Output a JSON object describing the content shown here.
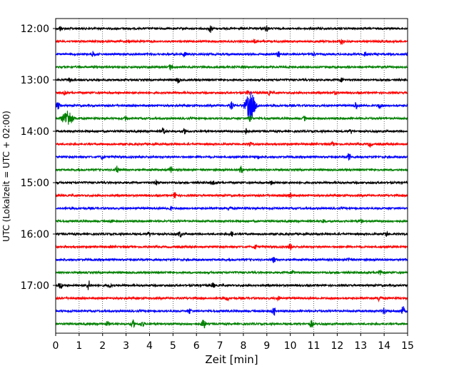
{
  "chart_data": {
    "type": "line",
    "title": "",
    "xlabel": "Zeit  [min]",
    "ylabel": "UTC (Lokalzeit = UTC + 02:00)",
    "xlim": [
      0,
      15
    ],
    "x_ticks": [
      "0",
      "1",
      "2",
      "3",
      "4",
      "5",
      "6",
      "7",
      "8",
      "9",
      "10",
      "11",
      "12",
      "13",
      "14",
      "15"
    ],
    "y_ticks": [
      "12:00",
      "13:00",
      "14:00",
      "15:00",
      "16:00",
      "17:00"
    ],
    "grid": "vertical-dotted",
    "colors": [
      "#000000",
      "#ff0000",
      "#0000ff",
      "#008000"
    ],
    "traces": [
      {
        "start": "12:00",
        "color": "#000000",
        "events": [
          [
            6.6,
            5
          ],
          [
            9.0,
            3.5
          ],
          [
            0.2,
            3
          ]
        ]
      },
      {
        "start": "12:15",
        "color": "#ff0000",
        "events": [
          [
            12.2,
            3.5
          ],
          [
            3.1,
            2
          ],
          [
            8.5,
            2
          ]
        ]
      },
      {
        "start": "12:30",
        "color": "#0000ff",
        "events": [
          [
            1.6,
            3.5
          ],
          [
            5.5,
            3
          ],
          [
            9.5,
            4
          ],
          [
            11.0,
            2.5
          ],
          [
            13.2,
            2.5
          ]
        ]
      },
      {
        "start": "12:45",
        "color": "#008000",
        "events": [
          [
            4.9,
            4
          ],
          [
            8.0,
            2.5
          ]
        ]
      },
      {
        "start": "13:00",
        "color": "#000000",
        "events": [
          [
            0.6,
            3
          ],
          [
            5.2,
            4.5
          ],
          [
            12.2,
            2.5
          ]
        ]
      },
      {
        "start": "13:15",
        "color": "#ff0000",
        "events": [
          [
            0.4,
            3
          ],
          [
            8.2,
            3
          ],
          [
            9.1,
            2
          ],
          [
            11.9,
            2
          ]
        ]
      },
      {
        "start": "13:30",
        "color": "#0000ff",
        "events": [
          [
            0.1,
            5
          ],
          [
            7.5,
            5
          ],
          [
            8.3,
            19
          ],
          [
            12.8,
            5
          ],
          [
            13.8,
            3.5
          ]
        ]
      },
      {
        "start": "13:45",
        "color": "#008000",
        "events": [
          [
            0.5,
            12
          ],
          [
            3.0,
            3
          ],
          [
            8.3,
            6
          ],
          [
            10.6,
            3
          ]
        ]
      },
      {
        "start": "14:00",
        "color": "#000000",
        "events": [
          [
            4.6,
            5
          ],
          [
            5.5,
            3
          ],
          [
            8.1,
            4
          ],
          [
            12.6,
            2.5
          ]
        ]
      },
      {
        "start": "14:15",
        "color": "#ff0000",
        "events": [
          [
            8.3,
            3
          ],
          [
            11.8,
            2
          ],
          [
            13.4,
            3
          ]
        ]
      },
      {
        "start": "14:30",
        "color": "#0000ff",
        "events": [
          [
            2.0,
            3
          ],
          [
            8.6,
            2
          ],
          [
            12.5,
            5
          ]
        ]
      },
      {
        "start": "14:45",
        "color": "#008000",
        "events": [
          [
            2.6,
            5
          ],
          [
            4.9,
            4.5
          ],
          [
            7.9,
            5.5
          ]
        ]
      },
      {
        "start": "15:00",
        "color": "#000000",
        "events": [
          [
            4.3,
            2.5
          ],
          [
            6.7,
            2.5
          ],
          [
            9.2,
            2.5
          ]
        ]
      },
      {
        "start": "15:15",
        "color": "#ff0000",
        "events": [
          [
            5.1,
            4.5
          ],
          [
            10.0,
            3
          ]
        ]
      },
      {
        "start": "15:30",
        "color": "#0000ff",
        "events": [
          [
            4.9,
            2.5
          ],
          [
            7.4,
            2.5
          ]
        ]
      },
      {
        "start": "15:45",
        "color": "#008000",
        "events": [
          [
            2.4,
            2
          ],
          [
            11.4,
            2.5
          ],
          [
            13.0,
            2.5
          ]
        ]
      },
      {
        "start": "16:00",
        "color": "#000000",
        "events": [
          [
            4.0,
            2.5
          ],
          [
            5.3,
            4
          ],
          [
            7.5,
            3
          ],
          [
            14.1,
            3
          ]
        ]
      },
      {
        "start": "16:15",
        "color": "#ff0000",
        "events": [
          [
            8.5,
            3
          ],
          [
            10.0,
            4
          ]
        ]
      },
      {
        "start": "16:30",
        "color": "#0000ff",
        "events": [
          [
            9.3,
            3.5
          ],
          [
            12.5,
            2.5
          ]
        ]
      },
      {
        "start": "16:45",
        "color": "#008000",
        "events": [
          [
            13.8,
            4
          ],
          [
            10.1,
            2.5
          ]
        ]
      },
      {
        "start": "17:00",
        "color": "#000000",
        "events": [
          [
            0.2,
            4
          ],
          [
            1.4,
            6.5
          ],
          [
            2.3,
            3
          ],
          [
            6.7,
            3
          ]
        ]
      },
      {
        "start": "17:15",
        "color": "#ff0000",
        "events": [
          [
            7.3,
            3
          ],
          [
            13.8,
            4
          ],
          [
            9.5,
            2
          ]
        ]
      },
      {
        "start": "17:30",
        "color": "#0000ff",
        "events": [
          [
            5.7,
            3.5
          ],
          [
            9.3,
            5.5
          ],
          [
            14.0,
            4.5
          ],
          [
            14.8,
            6
          ]
        ]
      },
      {
        "start": "17:45",
        "color": "#008000",
        "events": [
          [
            2.2,
            3
          ],
          [
            3.3,
            5
          ],
          [
            3.7,
            4
          ],
          [
            6.3,
            8
          ],
          [
            10.9,
            5
          ]
        ]
      }
    ]
  }
}
